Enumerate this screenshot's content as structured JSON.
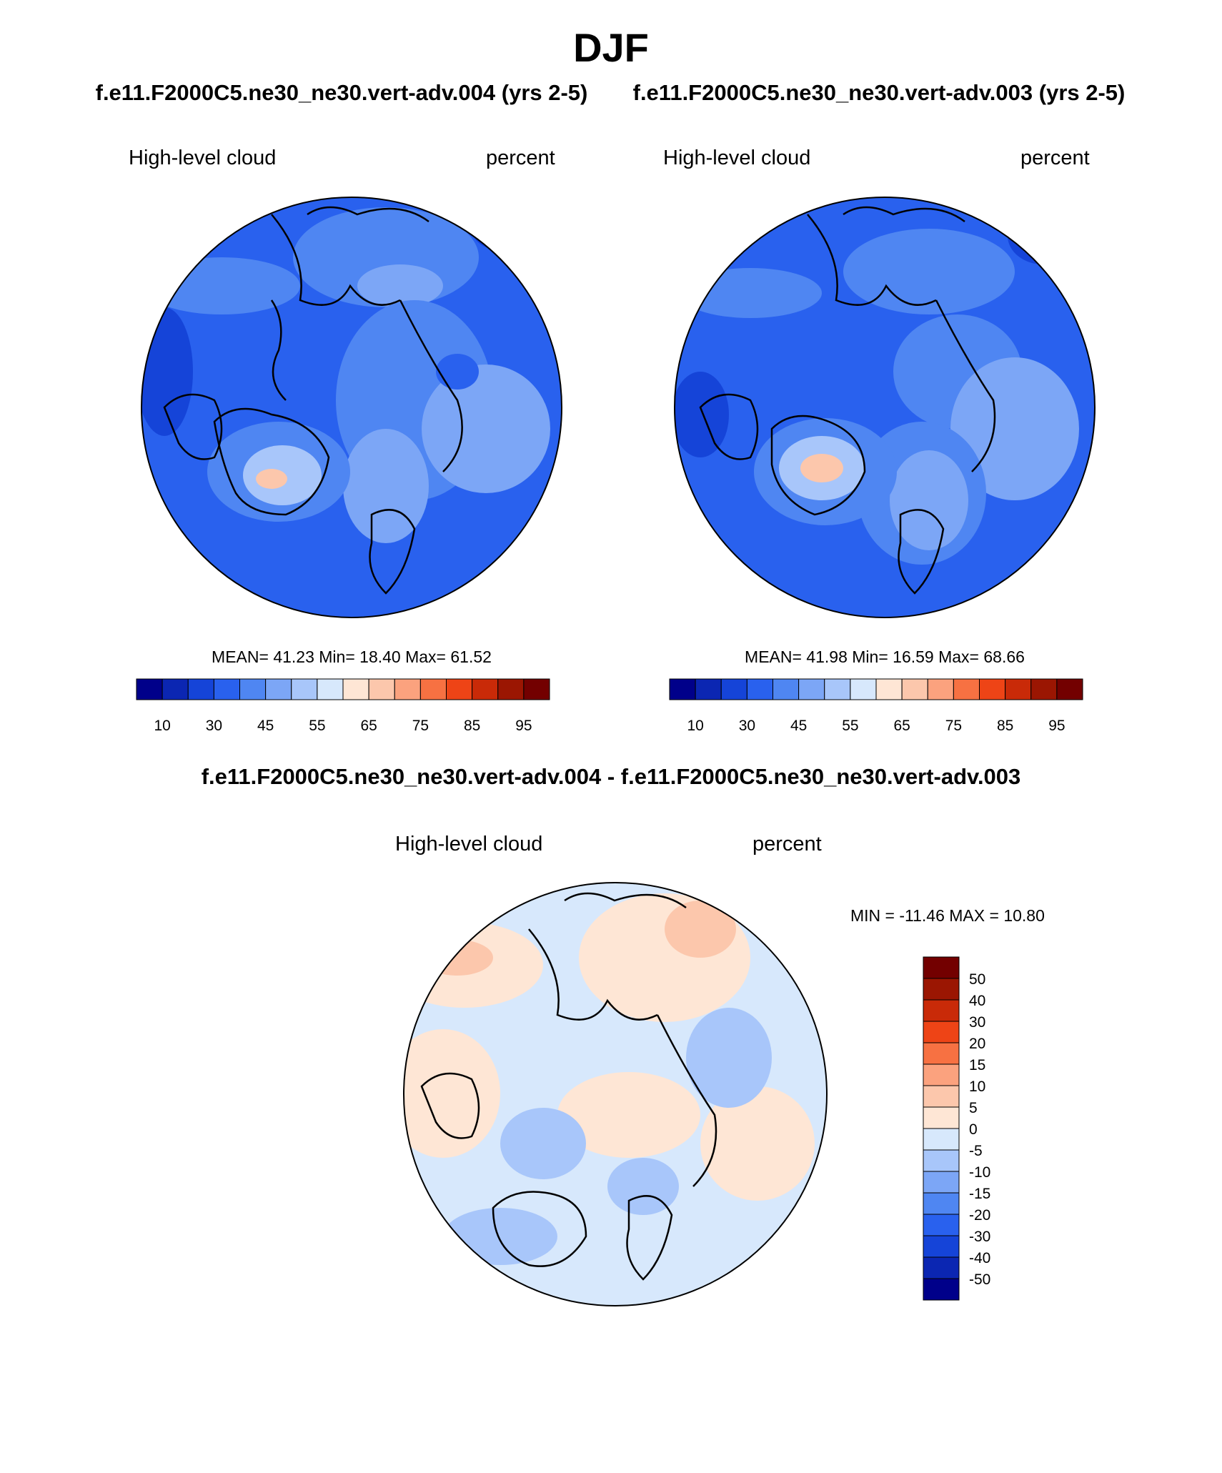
{
  "figure": {
    "title": "DJF",
    "subtitle_left": "f.e11.F2000C5.ne30_ne30.vert-adv.004 (yrs 2-5)",
    "subtitle_right": "f.e11.F2000C5.ne30_ne30.vert-adv.003 (yrs 2-5)",
    "diff_title": "f.e11.F2000C5.ne30_ne30.vert-adv.004 - f.e11.F2000C5.ne30_ne30.vert-adv.003"
  },
  "panels": [
    {
      "variable": "High-level cloud",
      "units": "percent",
      "stats": "MEAN=  41.23  Min=  18.40  Max=  61.52",
      "mean": 41.23,
      "min": 18.4,
      "max": 61.52
    },
    {
      "variable": "High-level cloud",
      "units": "percent",
      "stats": "MEAN=  41.98  Min=  16.59  Max=  68.66",
      "mean": 41.98,
      "min": 16.59,
      "max": 68.66
    },
    {
      "variable": "High-level cloud",
      "units": "percent",
      "stats": "MIN = -11.46 MAX =  10.80",
      "min": -11.46,
      "max": 10.8
    }
  ],
  "colorbars": {
    "horizontal": {
      "labels": [
        "10",
        "30",
        "45",
        "55",
        "65",
        "75",
        "85",
        "95"
      ],
      "colors": [
        "#00008a",
        "#0b26b2",
        "#1544d8",
        "#2961ee",
        "#4f86f2",
        "#7ca6f6",
        "#a8c6fa",
        "#d7e8fc",
        "#fee6d5",
        "#fcc7ac",
        "#fba27e",
        "#f77142",
        "#ee4416",
        "#c92a08",
        "#9b1602",
        "#730000"
      ]
    },
    "vertical": {
      "labels": [
        "50",
        "40",
        "30",
        "20",
        "15",
        "10",
        "5",
        "0",
        "-5",
        "-10",
        "-15",
        "-20",
        "-30",
        "-40",
        "-50"
      ],
      "colors": [
        "#730000",
        "#9b1602",
        "#c92a08",
        "#ee4416",
        "#f77142",
        "#fba27e",
        "#fcc7ac",
        "#fee6d5",
        "#d7e8fc",
        "#a8c6fa",
        "#7ca6f6",
        "#4f86f2",
        "#2961ee",
        "#1544d8",
        "#0b26b2",
        "#00008a"
      ]
    }
  }
}
